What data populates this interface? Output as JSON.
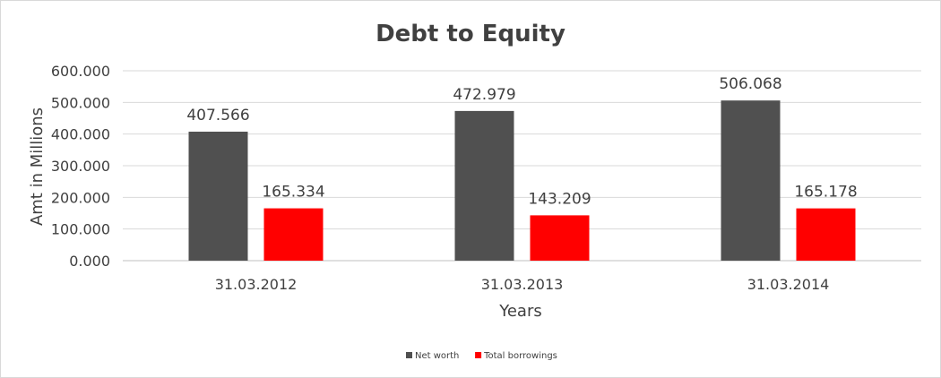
{
  "chart_data": {
    "type": "bar",
    "title": "Debt to Equity",
    "xlabel": "Years",
    "ylabel": "Amt in Millions",
    "categories": [
      "31.03.2012",
      "31.03.2013",
      "31.03.2014"
    ],
    "series": [
      {
        "name": "Net worth",
        "color": "#505050",
        "values": [
          407.566,
          472.979,
          506.068
        ],
        "labels": [
          "407.566",
          "472.979",
          "506.068"
        ]
      },
      {
        "name": "Total borrowings",
        "color": "#ff0000",
        "values": [
          165.334,
          143.209,
          165.178
        ],
        "labels": [
          "165.334",
          "143.209",
          "165.178"
        ]
      }
    ],
    "ylim": [
      0,
      600
    ],
    "yticks": [
      0,
      100,
      200,
      300,
      400,
      500,
      600
    ],
    "ytick_labels": [
      "0.000",
      "100.000",
      "200.000",
      "300.000",
      "400.000",
      "500.000",
      "600.000"
    ],
    "grid": true,
    "legend_position": "bottom"
  }
}
